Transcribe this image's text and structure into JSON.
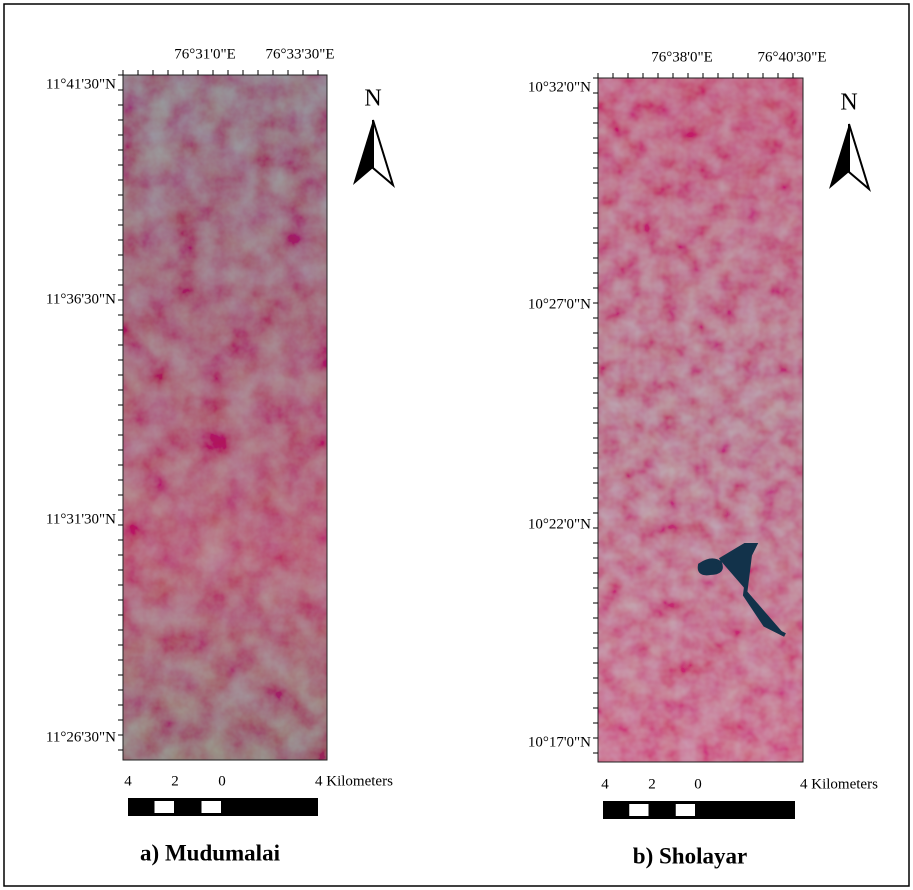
{
  "panels": [
    {
      "caption": "a) Mudumalai",
      "latitude_labels": [
        "11°41'30\"N",
        "11°36'30\"N",
        "11°31'30\"N",
        "11°26'30\"N"
      ],
      "longitude_labels": [
        "76°31'0\"E",
        "76°33'30\"E"
      ],
      "north": "N",
      "scale_labels": [
        "4",
        "2",
        "0",
        "4 Kilometers"
      ]
    },
    {
      "caption": "b) Sholayar",
      "latitude_labels": [
        "10°32'0\"N",
        "10°27'0\"N",
        "10°22'0\"N",
        "10°17'0\"N"
      ],
      "longitude_labels": [
        "76°38'0\"E",
        "76°40'30\"E"
      ],
      "north": "N",
      "scale_labels": [
        "4",
        "2",
        "0",
        "4 Kilometers"
      ]
    }
  ]
}
